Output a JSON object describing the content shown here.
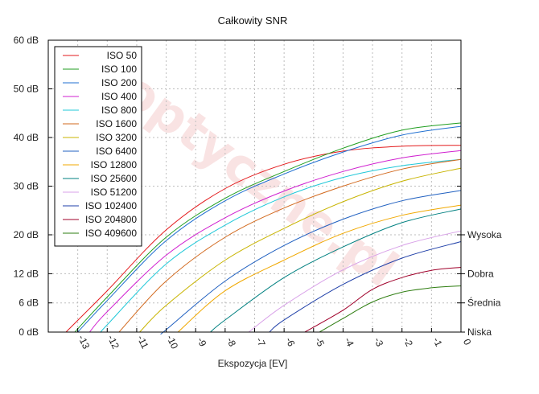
{
  "chart_data": {
    "type": "line",
    "title": "Całkowity SNR",
    "xlabel": "Ekspozycja [EV]",
    "ylabel": "",
    "xlim": [
      -14,
      0
    ],
    "ylim": [
      0,
      60
    ],
    "grid": true,
    "legend_position": "top-left",
    "x_ticks": [
      -13,
      -12,
      -11,
      -10,
      -9,
      -8,
      -7,
      -6,
      -5,
      -4,
      -3,
      -2,
      -1,
      0
    ],
    "y_ticks": [
      {
        "value": 0,
        "label": "0 dB"
      },
      {
        "value": 6,
        "label": "6 dB"
      },
      {
        "value": 12,
        "label": "12 dB"
      },
      {
        "value": 20,
        "label": "20 dB"
      },
      {
        "value": 30,
        "label": "30 dB"
      },
      {
        "value": 40,
        "label": "40 dB"
      },
      {
        "value": 50,
        "label": "50 dB"
      },
      {
        "value": 60,
        "label": "60 dB"
      }
    ],
    "right_labels": [
      {
        "value": 20,
        "label": "Wysoka"
      },
      {
        "value": 12,
        "label": "Dobra"
      },
      {
        "value": 6,
        "label": "Średnia"
      },
      {
        "value": 0,
        "label": "Niska"
      }
    ],
    "watermark": "optyczne.pl",
    "series": [
      {
        "name": "ISO 50",
        "color": "#e31a1c",
        "x": [
          -13.4,
          -12,
          -10,
          -8,
          -6,
          -4,
          -2,
          0
        ],
        "y": [
          0,
          8.5,
          21,
          29.5,
          34.5,
          37.2,
          38.2,
          38.4
        ]
      },
      {
        "name": "ISO 100",
        "color": "#1f9e1f",
        "x": [
          -13.1,
          -12,
          -10,
          -8,
          -6,
          -4,
          -2,
          0
        ],
        "y": [
          0,
          7.2,
          19.5,
          27.5,
          33,
          37.8,
          41.5,
          43
        ]
      },
      {
        "name": "ISO 200",
        "color": "#1f6fd0",
        "x": [
          -13.0,
          -12,
          -10,
          -8,
          -6,
          -4,
          -2,
          0
        ],
        "y": [
          0,
          6.5,
          18.8,
          27,
          32.5,
          37,
          40.5,
          42.3
        ]
      },
      {
        "name": "ISO 400",
        "color": "#d020d0",
        "x": [
          -12.6,
          -12,
          -10,
          -8,
          -6,
          -4,
          -2,
          0
        ],
        "y": [
          0,
          4.2,
          15.8,
          23.5,
          29,
          33,
          35.8,
          37.3
        ]
      },
      {
        "name": "ISO 800",
        "color": "#20c8d8",
        "x": [
          -12.2,
          -12,
          -10,
          -8,
          -6,
          -4,
          -2,
          0
        ],
        "y": [
          0,
          1.5,
          14,
          22,
          27.8,
          31.8,
          34.2,
          35.5
        ]
      },
      {
        "name": "ISO 1600",
        "color": "#d2691e",
        "x": [
          -11.6,
          -10,
          -8,
          -6,
          -4,
          -2,
          0
        ],
        "y": [
          0,
          10.5,
          19.5,
          25.5,
          30,
          33.5,
          35.5
        ]
      },
      {
        "name": "ISO 3200",
        "color": "#c8b400",
        "x": [
          -10.9,
          -10,
          -8,
          -6,
          -4,
          -2,
          0
        ],
        "y": [
          0,
          5.5,
          14.8,
          21.3,
          26.8,
          31,
          33.7
        ]
      },
      {
        "name": "ISO 6400",
        "color": "#2060c0",
        "x": [
          -10.1,
          -10,
          -8,
          -6,
          -4,
          -2,
          0
        ],
        "y": [
          0,
          0.5,
          10.5,
          17.8,
          23.2,
          27,
          29.1
        ]
      },
      {
        "name": "ISO 12800",
        "color": "#f0a800",
        "x": [
          -9.6,
          -8,
          -6,
          -4,
          -2,
          0
        ],
        "y": [
          0,
          8.5,
          14.8,
          20.3,
          24,
          26.1
        ]
      },
      {
        "name": "ISO 25600",
        "color": "#008080",
        "x": [
          -8.5,
          -8,
          -6,
          -4,
          -2,
          0
        ],
        "y": [
          0,
          2.5,
          11.2,
          17.5,
          22.5,
          25.3
        ]
      },
      {
        "name": "ISO 51200",
        "color": "#d8a0e8",
        "x": [
          -7.2,
          -6,
          -4,
          -2,
          0
        ],
        "y": [
          0,
          5.5,
          12.8,
          17.8,
          20.8
        ]
      },
      {
        "name": "ISO 102400",
        "color": "#1f3fa8",
        "x": [
          -6.5,
          -6,
          -4,
          -2,
          0
        ],
        "y": [
          0,
          2.5,
          9.8,
          15.2,
          18.6
        ]
      },
      {
        "name": "ISO 204800",
        "color": "#a0002a",
        "x": [
          -5.3,
          -4,
          -3,
          -2,
          -1,
          0
        ],
        "y": [
          0,
          4.5,
          8.8,
          11.2,
          12.7,
          13.3
        ]
      },
      {
        "name": "ISO 409600",
        "color": "#2e7d10",
        "x": [
          -4.8,
          -4,
          -3,
          -2,
          -1,
          0
        ],
        "y": [
          0,
          2.8,
          6.2,
          8.2,
          9.1,
          9.5
        ]
      }
    ]
  }
}
